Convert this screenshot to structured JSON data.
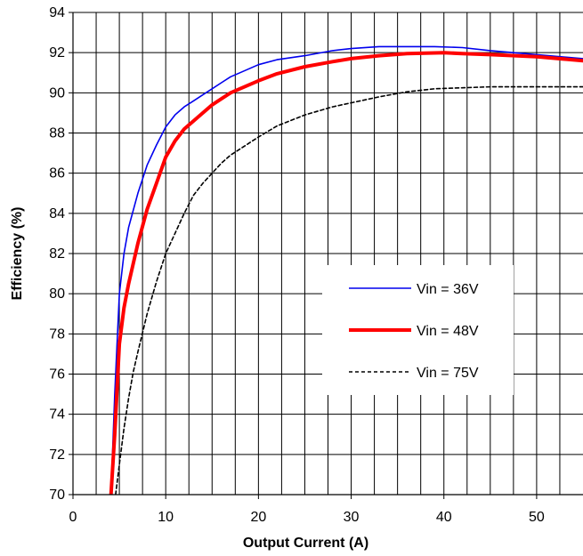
{
  "chart_data": {
    "type": "line",
    "title": "",
    "xlabel": "Output Current (A)",
    "ylabel": "Efficiency (%)",
    "xlim": [
      0,
      55
    ],
    "ylim": [
      70,
      94
    ],
    "x_ticks": [
      0,
      10,
      20,
      30,
      40,
      50
    ],
    "y_ticks": [
      70,
      72,
      74,
      76,
      78,
      80,
      82,
      84,
      86,
      88,
      90,
      92,
      94
    ],
    "x_minor_step": 2.5,
    "grid": true,
    "legend_position": "center-right",
    "series": [
      {
        "name": "Vin = 36V",
        "color": "#0000ee",
        "style": "solid-thin",
        "x": [
          4.1,
          4.5,
          5.0,
          5.5,
          6.0,
          7.0,
          8.0,
          9.0,
          10.0,
          11.0,
          12.0,
          13.0,
          14.0,
          15.0,
          16.0,
          17.0,
          18.0,
          20.0,
          22.0,
          25.0,
          28.0,
          30.0,
          33.0,
          36.0,
          39.0,
          42.0,
          45.0,
          50.0,
          55.0
        ],
        "values": [
          70.0,
          75.0,
          80.0,
          82.0,
          83.3,
          85.0,
          86.4,
          87.4,
          88.3,
          88.9,
          89.3,
          89.6,
          89.9,
          90.2,
          90.5,
          90.8,
          91.0,
          91.4,
          91.65,
          91.85,
          92.1,
          92.2,
          92.3,
          92.3,
          92.3,
          92.25,
          92.1,
          91.9,
          91.7
        ]
      },
      {
        "name": "Vin = 48V",
        "color": "#ff0000",
        "style": "solid-thick",
        "x": [
          4.1,
          4.5,
          5.0,
          5.5,
          6.0,
          7.0,
          8.0,
          9.0,
          10.0,
          11.0,
          12.0,
          13.0,
          14.0,
          15.0,
          16.0,
          17.0,
          18.0,
          20.0,
          22.0,
          25.0,
          28.0,
          30.0,
          33.0,
          36.0,
          40.0,
          42.0,
          45.0,
          50.0,
          55.0
        ],
        "values": [
          70.0,
          73.0,
          77.5,
          79.3,
          80.5,
          82.5,
          84.2,
          85.5,
          86.8,
          87.6,
          88.2,
          88.6,
          89.0,
          89.4,
          89.7,
          90.0,
          90.2,
          90.6,
          90.95,
          91.3,
          91.55,
          91.7,
          91.85,
          91.95,
          92.0,
          91.95,
          91.9,
          91.8,
          91.6
        ]
      },
      {
        "name": "Vin = 75V",
        "color": "#000000",
        "style": "dashed",
        "x": [
          4.6,
          5.0,
          5.5,
          6.0,
          6.5,
          7.0,
          8.0,
          9.0,
          10.0,
          11.0,
          12.0,
          13.0,
          14.0,
          15.0,
          16.0,
          17.0,
          18.0,
          20.0,
          22.0,
          25.0,
          28.0,
          30.0,
          33.0,
          36.0,
          39.0,
          42.0,
          45.0,
          50.0,
          55.0
        ],
        "values": [
          70.0,
          71.5,
          73.3,
          74.8,
          76.1,
          77.1,
          79.0,
          80.6,
          82.0,
          83.0,
          84.0,
          84.9,
          85.5,
          86.0,
          86.5,
          86.9,
          87.2,
          87.8,
          88.35,
          88.9,
          89.3,
          89.5,
          89.8,
          90.05,
          90.2,
          90.25,
          90.3,
          90.3,
          90.3
        ]
      }
    ]
  }
}
